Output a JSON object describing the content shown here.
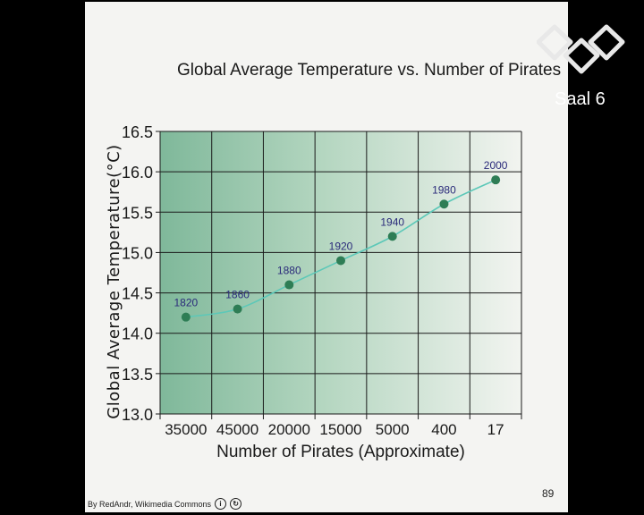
{
  "slide": {
    "page_number": "89",
    "credit": "By RedAndr, Wikimedia Commons"
  },
  "overlay": {
    "channel_label": "Saal 6",
    "channel_logo_icon": "ccc-logo-icon"
  },
  "chart_data": {
    "type": "line",
    "title": "Global Average Temperature vs. Number of Pirates",
    "xlabel": "Number of Pirates (Approximate)",
    "ylabel": "Global Average Temperature(°C)",
    "categories": [
      "35000",
      "45000",
      "20000",
      "15000",
      "5000",
      "400",
      "17"
    ],
    "values": [
      14.2,
      14.3,
      14.6,
      14.9,
      15.2,
      15.6,
      15.9
    ],
    "point_labels": [
      "1820",
      "1860",
      "1880",
      "1920",
      "1940",
      "1980",
      "2000"
    ],
    "ylim": [
      13.0,
      16.5
    ],
    "yticks": [
      "13.0",
      "13.5",
      "14.0",
      "14.5",
      "15.0",
      "15.5",
      "16.0",
      "16.5"
    ],
    "grid": true,
    "colors": {
      "line": "#5cc8b8",
      "marker": "#2e7d55",
      "label": "#2a2a7a",
      "bg_dark": "#7fb89a"
    }
  }
}
